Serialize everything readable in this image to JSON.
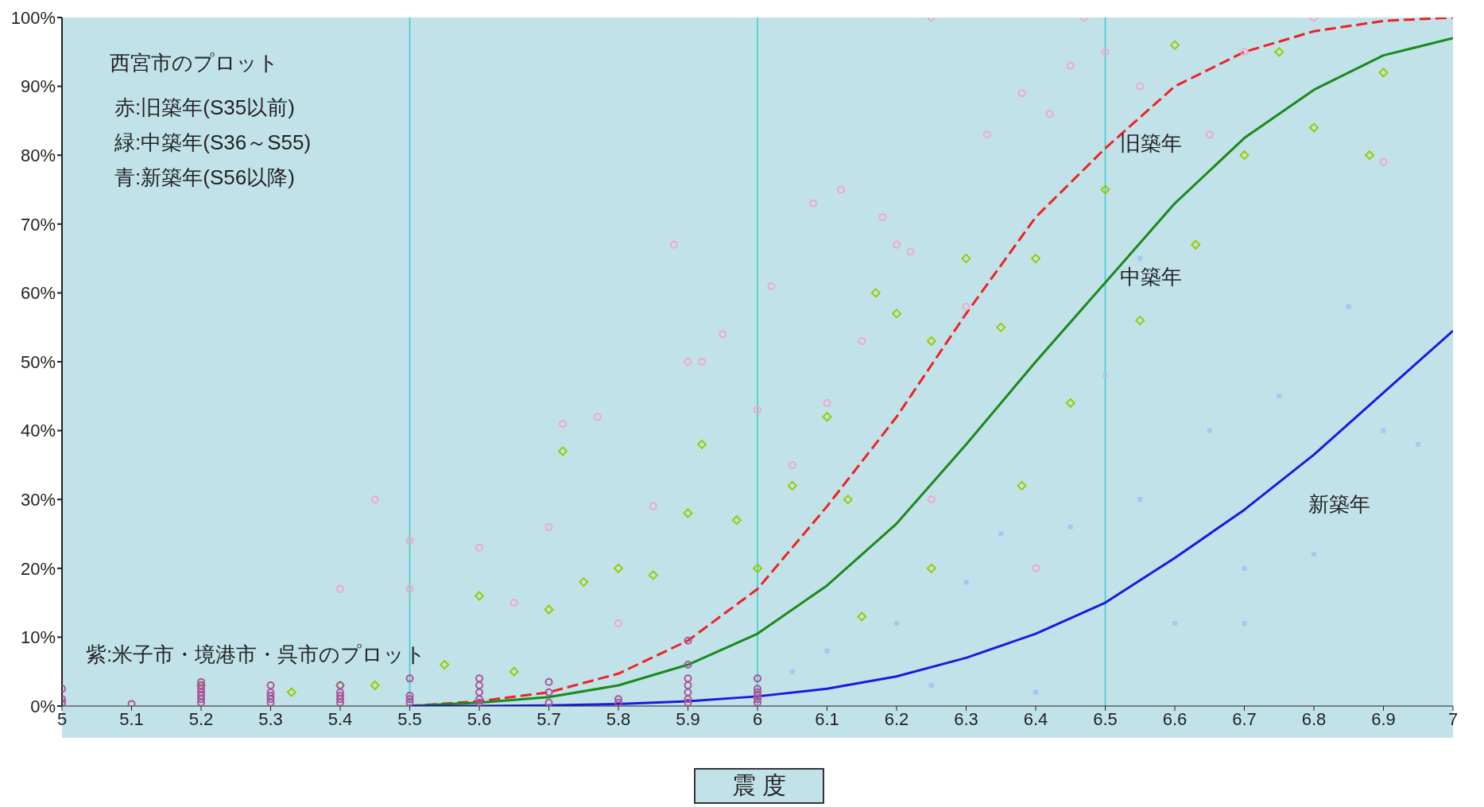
{
  "chart_data": {
    "type": "line",
    "xlabel": "震 度",
    "xlim": [
      5,
      7
    ],
    "xticks": [
      5,
      5.1,
      5.2,
      5.3,
      5.4,
      5.5,
      5.6,
      5.7,
      5.8,
      5.9,
      6,
      6.1,
      6.2,
      6.3,
      6.4,
      6.5,
      6.6,
      6.7,
      6.8,
      6.9,
      7
    ],
    "ylim": [
      0,
      100
    ],
    "yticks": [
      {
        "value": 0,
        "label": "0%"
      },
      {
        "value": 10,
        "label": "10%"
      },
      {
        "value": 20,
        "label": "20%"
      },
      {
        "value": 30,
        "label": "30%"
      },
      {
        "value": 40,
        "label": "40%"
      },
      {
        "value": 50,
        "label": "50%"
      },
      {
        "value": 60,
        "label": "60%"
      },
      {
        "value": 70,
        "label": "70%"
      },
      {
        "value": 80,
        "label": "80%"
      },
      {
        "value": 90,
        "label": "90%"
      },
      {
        "value": 100,
        "label": "100%"
      }
    ],
    "grid": false,
    "legend": false,
    "series": [
      {
        "type": "scatter",
        "marker": "circle",
        "color": "#f4a6c8",
        "x": [
          5.45,
          5.5,
          5.5,
          5.4,
          5.6,
          5.7,
          5.72,
          5.77,
          5.85,
          5.9,
          5.92,
          5.88,
          5.95,
          6.0,
          6.02,
          6.08,
          6.12,
          6.15,
          6.18,
          6.2,
          6.22,
          6.25,
          6.3,
          6.33,
          6.38,
          6.42,
          6.45,
          6.47,
          6.5,
          6.55,
          6.65,
          6.7,
          6.8,
          6.9,
          5.65,
          5.8,
          6.05,
          6.1,
          6.25,
          6.4
        ],
        "values": [
          30,
          24,
          17,
          17,
          23,
          26,
          41,
          42,
          29,
          50,
          50,
          67,
          54,
          43,
          61,
          73,
          75,
          53,
          71,
          67,
          66,
          100,
          58,
          83,
          89,
          86,
          93,
          100,
          95,
          90,
          83,
          95,
          100,
          79,
          15,
          12,
          35,
          44,
          30,
          20
        ]
      },
      {
        "type": "scatter",
        "marker": "diamond",
        "color": "#99cc00",
        "x": [
          5.4,
          5.45,
          5.55,
          5.6,
          5.65,
          5.72,
          5.7,
          5.75,
          5.8,
          5.85,
          5.9,
          5.92,
          5.97,
          6.0,
          6.05,
          6.1,
          6.13,
          6.17,
          6.2,
          6.25,
          6.3,
          6.35,
          6.4,
          6.45,
          6.5,
          6.55,
          6.6,
          6.63,
          6.7,
          6.75,
          6.8,
          6.9,
          6.88,
          6.25,
          6.15,
          6.38,
          5.33,
          5.2
        ],
        "values": [
          3,
          3,
          6,
          16,
          5,
          37,
          14,
          18,
          20,
          19,
          28,
          38,
          27,
          20,
          32,
          42,
          30,
          60,
          57,
          53,
          65,
          55,
          65,
          44,
          75,
          56,
          96,
          67,
          80,
          95,
          84,
          92,
          80,
          20,
          13,
          32,
          2,
          3
        ]
      },
      {
        "type": "scatter",
        "marker": "square",
        "color": "#a6c8f0",
        "x": [
          6.05,
          6.1,
          6.2,
          6.3,
          6.35,
          6.45,
          6.5,
          6.55,
          6.6,
          6.65,
          6.7,
          6.75,
          6.8,
          6.85,
          6.9,
          6.95,
          6.4,
          6.25,
          6.55,
          6.7
        ],
        "values": [
          5,
          8,
          12,
          18,
          25,
          26,
          48,
          30,
          12,
          40,
          20,
          45,
          22,
          58,
          40,
          38,
          2,
          3,
          65,
          12
        ]
      },
      {
        "type": "scatter",
        "marker": "circle",
        "color": "#aa5599",
        "x": [
          5,
          5,
          5,
          5.1,
          5.2,
          5.2,
          5.2,
          5.2,
          5.2,
          5.2,
          5.2,
          5.3,
          5.3,
          5.3,
          5.3,
          5.3,
          5.4,
          5.4,
          5.4,
          5.4,
          5.4,
          5.5,
          5.5,
          5.5,
          5.5,
          5.6,
          5.6,
          5.6,
          5.6,
          5.6,
          5.7,
          5.7,
          5.7,
          5.8,
          5.8,
          5.9,
          5.9,
          5.9,
          5.9,
          5.9,
          5.9,
          5.9,
          6,
          6,
          6,
          6,
          6,
          6
        ],
        "values": [
          0.5,
          1,
          2.5,
          0.3,
          0.5,
          1,
          1.5,
          2,
          2.5,
          3,
          3.5,
          0.5,
          1,
          1.5,
          2,
          3,
          0.5,
          1,
          1.5,
          2,
          3,
          0.5,
          1,
          1.5,
          4,
          0.5,
          1,
          2,
          3,
          4,
          0.5,
          2,
          3.5,
          0.5,
          1,
          0.5,
          1,
          2,
          3,
          4,
          6,
          9.5,
          0.5,
          1,
          1.5,
          2,
          2.5,
          4
        ]
      },
      {
        "name": "旧築年",
        "line_style": "dashed",
        "color": "#ee2222",
        "x": [
          5.5,
          5.6,
          5.7,
          5.8,
          5.9,
          6,
          6.1,
          6.2,
          6.3,
          6.4,
          6.5,
          6.6,
          6.7,
          6.8,
          6.9,
          7
        ],
        "values": [
          0,
          0.7,
          2,
          4.7,
          9.5,
          17,
          29,
          42,
          57,
          71,
          81,
          90,
          95,
          98,
          99.5,
          100
        ]
      },
      {
        "name": "中築年",
        "line_style": "solid",
        "color": "#1a8a1a",
        "x": [
          5.5,
          5.6,
          5.7,
          5.8,
          5.9,
          6,
          6.1,
          6.2,
          6.3,
          6.4,
          6.5,
          6.6,
          6.7,
          6.8,
          6.9,
          7
        ],
        "values": [
          0,
          0.5,
          1.3,
          3,
          6,
          10.5,
          17.5,
          26.5,
          38,
          50,
          61.5,
          73,
          82.5,
          89.5,
          94.5,
          97
        ]
      },
      {
        "name": "新築年",
        "line_style": "solid",
        "color": "#1a1ae0",
        "x": [
          5.5,
          5.6,
          5.7,
          5.8,
          5.9,
          6,
          6.1,
          6.2,
          6.3,
          6.4,
          6.5,
          6.6,
          6.7,
          6.8,
          6.9,
          7
        ],
        "values": [
          0,
          0,
          0.1,
          0.3,
          0.7,
          1.4,
          2.5,
          4.3,
          7,
          10.5,
          15,
          21.5,
          28.5,
          36.5,
          45.5,
          54.5
        ]
      }
    ],
    "ref_lines": [
      {
        "axis": "x",
        "value": 5.5,
        "color": "#33cccc"
      },
      {
        "axis": "x",
        "value": 6,
        "color": "#33cccc"
      },
      {
        "axis": "x",
        "value": 6.5,
        "color": "#33cccc"
      }
    ],
    "annotations": [
      "西宮市のプロット",
      "赤:旧築年(S35以前)",
      "緑:中築年(S36～S55)",
      "青:新築年(S56以降)",
      "紫:米子市・境港市・呉市のプロット"
    ]
  }
}
